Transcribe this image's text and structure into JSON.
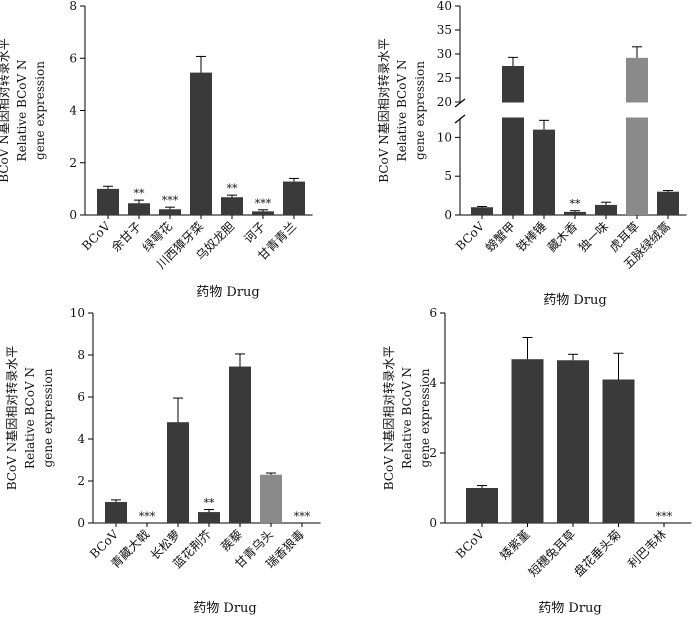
{
  "chart_data": [
    {
      "type": "bar",
      "xlabel": "药物 Drug",
      "ylabel_lines": [
        "BCoV N基因相对转录水平",
        "Relative BCoV N",
        "gene expression"
      ],
      "ylim": [
        0,
        8
      ],
      "yticks": [
        "0",
        "2",
        "4",
        "6",
        "8"
      ],
      "categories": [
        "BCoV",
        "余甘子",
        "绿萼花",
        "川西獐牙菜",
        "乌奴龙胆",
        "诃子",
        "甘青青兰"
      ],
      "values": [
        1.0,
        0.45,
        0.22,
        5.45,
        0.68,
        0.14,
        1.28
      ],
      "errors": [
        0.1,
        0.12,
        0.08,
        0.62,
        0.08,
        0.06,
        0.12
      ],
      "colors": [
        "#3a3a3a",
        "#3a3a3a",
        "#3a3a3a",
        "#3a3a3a",
        "#3a3a3a",
        "#3a3a3a",
        "#3a3a3a"
      ],
      "significance": [
        "",
        "**",
        "***",
        "",
        "**",
        "***",
        ""
      ],
      "grid": false
    },
    {
      "type": "bar",
      "xlabel": "药物 Drug",
      "ylabel_lines": [
        "BCoV N基因相对转录水平",
        "Relative BCoV N",
        "gene expression"
      ],
      "ylim": [
        0,
        40
      ],
      "axis_break": [
        12.5,
        20
      ],
      "yticks": [
        "0",
        "5",
        "10",
        "20",
        "25",
        "30",
        "35",
        "40"
      ],
      "categories": [
        "BCoV",
        "螃蟹甲",
        "铁棒锤",
        "藏木香",
        "独一味",
        "虎耳草",
        "五脉绿绒蒿"
      ],
      "values": [
        1.0,
        27.5,
        11.0,
        0.4,
        1.3,
        29.2,
        3.0
      ],
      "errors": [
        0.1,
        1.8,
        1.2,
        0.15,
        0.35,
        2.3,
        0.15
      ],
      "colors": [
        "#3a3a3a",
        "#3a3a3a",
        "#3a3a3a",
        "#3a3a3a",
        "#3a3a3a",
        "#8a8a8a",
        "#3a3a3a"
      ],
      "significance": [
        "",
        "",
        "",
        "**",
        "",
        "",
        ""
      ],
      "grid": false
    },
    {
      "type": "bar",
      "xlabel": "药物 Drug",
      "ylabel_lines": [
        "BCoV N基因相对转录水平",
        "Relative BCoV N",
        "gene expression"
      ],
      "ylim": [
        0,
        10
      ],
      "yticks": [
        "0",
        "2",
        "4",
        "6",
        "8",
        "10"
      ],
      "categories": [
        "BCoV",
        "青藏大戟",
        "长松萝",
        "蓝花荆芥",
        "蒺藜",
        "甘青乌头",
        "瑞香狼毒"
      ],
      "values": [
        1.0,
        0.0,
        4.8,
        0.52,
        7.45,
        2.3,
        0.0
      ],
      "errors": [
        0.1,
        0.0,
        1.15,
        0.12,
        0.6,
        0.08,
        0.0
      ],
      "colors": [
        "#3a3a3a",
        "#3a3a3a",
        "#3a3a3a",
        "#3a3a3a",
        "#3a3a3a",
        "#8a8a8a",
        "#3a3a3a"
      ],
      "significance": [
        "",
        "***",
        "",
        "**",
        "",
        "",
        "***"
      ],
      "grid": false
    },
    {
      "type": "bar",
      "xlabel": "药物 Drug",
      "ylabel_lines": [
        "BCoV N基因相对转录水平",
        "Relative BCoV N",
        "gene expression"
      ],
      "ylim": [
        0,
        6
      ],
      "yticks": [
        "0",
        "2",
        "4",
        "6"
      ],
      "categories": [
        "BCoV",
        "矮紫堇",
        "短穗兔耳草",
        "盘花垂头菊",
        "利巴韦林"
      ],
      "values": [
        1.0,
        4.68,
        4.65,
        4.1,
        0.0
      ],
      "errors": [
        0.07,
        0.62,
        0.17,
        0.75,
        0.0
      ],
      "colors": [
        "#3a3a3a",
        "#3a3a3a",
        "#3a3a3a",
        "#3a3a3a",
        "#3a3a3a"
      ],
      "significance": [
        "",
        "",
        "",
        "",
        "***"
      ],
      "grid": false
    }
  ]
}
